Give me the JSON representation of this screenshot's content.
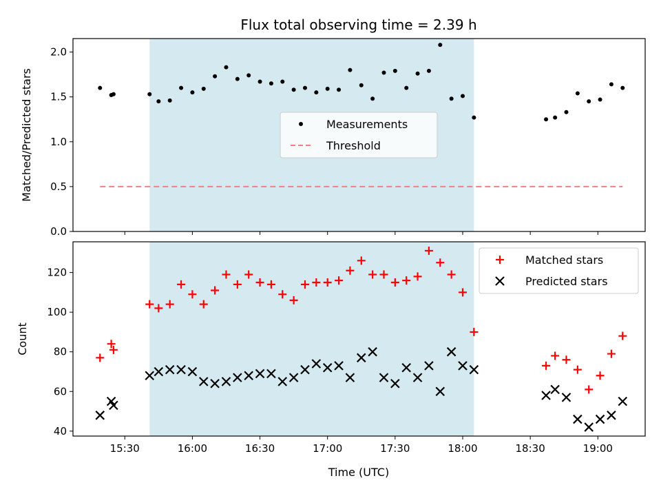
{
  "chart_data": {
    "title": "Flux total observing time = 2.39 h",
    "xlabel": "Time (UTC)",
    "x_ticks": [
      "15:30",
      "16:00",
      "16:30",
      "17:00",
      "17:30",
      "18:00",
      "18:30",
      "19:00"
    ],
    "x_range": [
      "15:07",
      "19:21"
    ],
    "shaded_interval": [
      "15:41",
      "18:05"
    ],
    "shaded_color": "#d4eaf0",
    "panels": [
      {
        "type": "scatter",
        "ylabel": "Matched/Predicted stars",
        "ylim": [
          0,
          2.15
        ],
        "yticks": [
          0.0,
          0.5,
          1.0,
          1.5,
          2.0
        ],
        "ytick_labels": [
          "0.0",
          "0.5",
          "1.0",
          "1.5",
          "2.0"
        ],
        "legend": {
          "position": "center",
          "entries": [
            "Measurements",
            "Threshold"
          ]
        },
        "series": [
          {
            "name": "Measurements",
            "marker": "dot",
            "color": "#000000",
            "x": [
              "15:19",
              "15:24",
              "15:25",
              "15:41",
              "15:45",
              "15:50",
              "15:55",
              "16:00",
              "16:05",
              "16:10",
              "16:15",
              "16:20",
              "16:25",
              "16:30",
              "16:35",
              "16:40",
              "16:45",
              "16:50",
              "16:55",
              "17:00",
              "17:05",
              "17:10",
              "17:15",
              "17:20",
              "17:25",
              "17:30",
              "17:35",
              "17:40",
              "17:45",
              "17:50",
              "17:55",
              "18:00",
              "18:05",
              "18:37",
              "18:41",
              "18:46",
              "18:51",
              "18:56",
              "19:01",
              "19:06",
              "19:11"
            ],
            "y": [
              1.6,
              1.52,
              1.53,
              1.53,
              1.45,
              1.46,
              1.6,
              1.55,
              1.59,
              1.73,
              1.83,
              1.7,
              1.74,
              1.67,
              1.65,
              1.67,
              1.58,
              1.6,
              1.55,
              1.59,
              1.58,
              1.8,
              1.63,
              1.48,
              1.77,
              1.79,
              1.6,
              1.76,
              1.79,
              2.08,
              1.48,
              1.51,
              1.27,
              1.25,
              1.27,
              1.33,
              1.54,
              1.45,
              1.47,
              1.64,
              1.6
            ]
          },
          {
            "name": "Threshold",
            "marker": "dashed-line",
            "color": "#f08080",
            "x": [
              "15:19",
              "19:11"
            ],
            "y": [
              0.5,
              0.5
            ]
          }
        ]
      },
      {
        "type": "scatter",
        "ylabel": "Count",
        "ylim": [
          37.5,
          135.5
        ],
        "yticks": [
          40,
          60,
          80,
          100,
          120
        ],
        "ytick_labels": [
          "40",
          "60",
          "80",
          "100",
          "120"
        ],
        "legend": {
          "position": "top-right",
          "entries": [
            "Matched stars",
            "Predicted stars"
          ]
        },
        "series": [
          {
            "name": "Matched stars",
            "marker": "plus",
            "color": "#ff0000",
            "x": [
              "15:19",
              "15:24",
              "15:25",
              "15:41",
              "15:45",
              "15:50",
              "15:55",
              "16:00",
              "16:05",
              "16:10",
              "16:15",
              "16:20",
              "16:25",
              "16:30",
              "16:35",
              "16:40",
              "16:45",
              "16:50",
              "16:55",
              "17:00",
              "17:05",
              "17:10",
              "17:15",
              "17:20",
              "17:25",
              "17:30",
              "17:35",
              "17:40",
              "17:45",
              "17:50",
              "17:55",
              "18:00",
              "18:05",
              "18:37",
              "18:41",
              "18:46",
              "18:51",
              "18:56",
              "19:01",
              "19:06",
              "19:11"
            ],
            "y": [
              77,
              84,
              81,
              104,
              102,
              104,
              114,
              109,
              104,
              111,
              119,
              114,
              119,
              115,
              114,
              109,
              106,
              114,
              115,
              115,
              116,
              121,
              126,
              119,
              119,
              115,
              116,
              118,
              131,
              125,
              119,
              110,
              90,
              73,
              78,
              76,
              71,
              61,
              68,
              79,
              88
            ]
          },
          {
            "name": "Predicted stars",
            "marker": "x",
            "color": "#000000",
            "x": [
              "15:19",
              "15:24",
              "15:25",
              "15:41",
              "15:45",
              "15:50",
              "15:55",
              "16:00",
              "16:05",
              "16:10",
              "16:15",
              "16:20",
              "16:25",
              "16:30",
              "16:35",
              "16:40",
              "16:45",
              "16:50",
              "16:55",
              "17:00",
              "17:05",
              "17:10",
              "17:15",
              "17:20",
              "17:25",
              "17:30",
              "17:35",
              "17:40",
              "17:45",
              "17:50",
              "17:55",
              "18:00",
              "18:05",
              "18:37",
              "18:41",
              "18:46",
              "18:51",
              "18:56",
              "19:01",
              "19:06",
              "19:11"
            ],
            "y": [
              48,
              55,
              53,
              68,
              70,
              71,
              71,
              70,
              65,
              64,
              65,
              67,
              68,
              69,
              69,
              65,
              67,
              71,
              74,
              72,
              73,
              67,
              77,
              80,
              67,
              64,
              72,
              67,
              73,
              60,
              80,
              73,
              71,
              58,
              61,
              57,
              46,
              42,
              46,
              48,
              55
            ]
          }
        ]
      }
    ]
  }
}
